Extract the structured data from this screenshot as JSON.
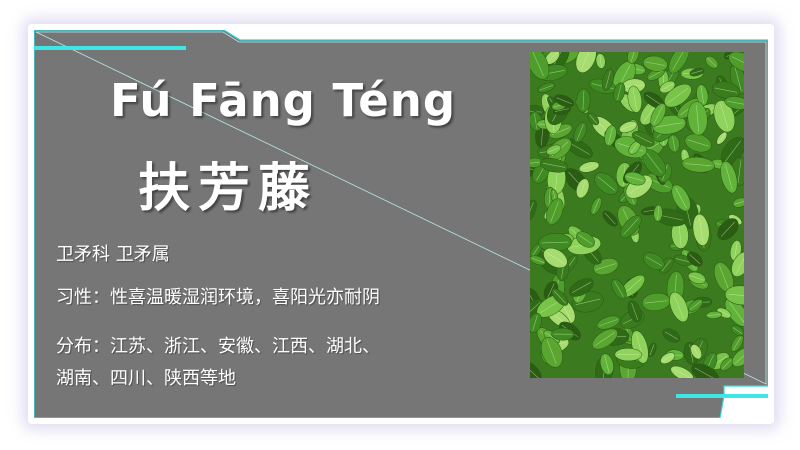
{
  "plant": {
    "pinyin": "Fú Fāng Téng",
    "name_cn": "扶芳藤",
    "family_line": "卫矛科 卫矛属",
    "habit_line": "习性：性喜温暖湿润环境，喜阳光亦耐阴",
    "distribution_line_1": "分布：江苏、浙江、安徽、江西、湖北、",
    "distribution_line_2": "湖南、四川、陕西等地"
  },
  "photo": {
    "subject": "green leaves of Euonymus fortunei"
  },
  "colors": {
    "panel": "#777777",
    "accent": "#3fe6e6",
    "text": "#ffffff"
  }
}
